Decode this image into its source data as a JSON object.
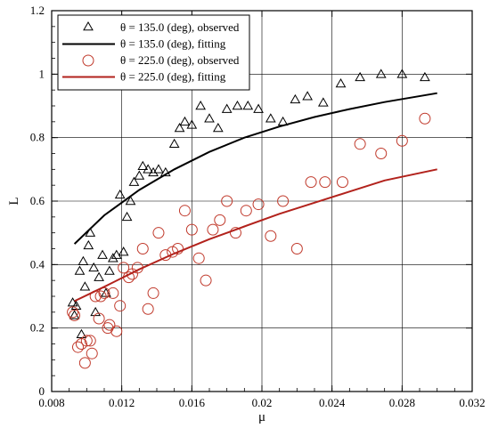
{
  "chart_data": {
    "type": "scatter",
    "xlabel": "μ",
    "ylabel": "L",
    "xlim": [
      0.008,
      0.032
    ],
    "ylim": [
      0,
      1.2
    ],
    "x_ticks": [
      0.008,
      0.012,
      0.016,
      0.02,
      0.024,
      0.028,
      0.032
    ],
    "x_tick_labels": [
      "0.008",
      "0.012",
      "0.016",
      "0.02",
      "0.024",
      "0.028",
      "0.032"
    ],
    "y_ticks": [
      0,
      0.2,
      0.4,
      0.6,
      0.8,
      1,
      1.2
    ],
    "y_tick_labels": [
      "0",
      "0.2",
      "0.4",
      "0.6",
      "0.8",
      "1",
      "1.2"
    ],
    "grid": true,
    "legend_position": "top-left",
    "series": [
      {
        "name": "θ = 135.0 (deg), observed",
        "kind": "scatter",
        "marker": "triangle",
        "color": "#000000",
        "points": [
          [
            0.0092,
            0.28
          ],
          [
            0.0093,
            0.24
          ],
          [
            0.0094,
            0.27
          ],
          [
            0.0096,
            0.38
          ],
          [
            0.0097,
            0.18
          ],
          [
            0.0098,
            0.41
          ],
          [
            0.0099,
            0.33
          ],
          [
            0.0101,
            0.46
          ],
          [
            0.0102,
            0.5
          ],
          [
            0.0104,
            0.39
          ],
          [
            0.0105,
            0.25
          ],
          [
            0.0107,
            0.36
          ],
          [
            0.0109,
            0.43
          ],
          [
            0.0111,
            0.31
          ],
          [
            0.0113,
            0.38
          ],
          [
            0.0115,
            0.42
          ],
          [
            0.0117,
            0.43
          ],
          [
            0.0119,
            0.62
          ],
          [
            0.0121,
            0.44
          ],
          [
            0.0123,
            0.55
          ],
          [
            0.0125,
            0.6
          ],
          [
            0.0127,
            0.66
          ],
          [
            0.013,
            0.68
          ],
          [
            0.0132,
            0.71
          ],
          [
            0.0135,
            0.7
          ],
          [
            0.0138,
            0.69
          ],
          [
            0.0141,
            0.7
          ],
          [
            0.0145,
            0.69
          ],
          [
            0.015,
            0.78
          ],
          [
            0.0153,
            0.83
          ],
          [
            0.0156,
            0.85
          ],
          [
            0.016,
            0.84
          ],
          [
            0.0165,
            0.9
          ],
          [
            0.017,
            0.86
          ],
          [
            0.0175,
            0.83
          ],
          [
            0.018,
            0.89
          ],
          [
            0.0186,
            0.9
          ],
          [
            0.0192,
            0.9
          ],
          [
            0.0198,
            0.89
          ],
          [
            0.0205,
            0.86
          ],
          [
            0.0212,
            0.85
          ],
          [
            0.0219,
            0.92
          ],
          [
            0.0226,
            0.93
          ],
          [
            0.0235,
            0.91
          ],
          [
            0.0245,
            0.97
          ],
          [
            0.0256,
            0.99
          ],
          [
            0.0268,
            1.0
          ],
          [
            0.028,
            1.0
          ],
          [
            0.0293,
            0.99
          ]
        ]
      },
      {
        "name": "θ = 135.0 (deg), fitting",
        "kind": "line",
        "color": "#000000",
        "points": [
          [
            0.0093,
            0.465
          ],
          [
            0.011,
            0.555
          ],
          [
            0.013,
            0.635
          ],
          [
            0.015,
            0.7
          ],
          [
            0.017,
            0.755
          ],
          [
            0.019,
            0.8
          ],
          [
            0.021,
            0.835
          ],
          [
            0.023,
            0.865
          ],
          [
            0.025,
            0.89
          ],
          [
            0.027,
            0.912
          ],
          [
            0.03,
            0.94
          ]
        ]
      },
      {
        "name": "θ = 225.0 (deg), observed",
        "kind": "scatter",
        "marker": "circle",
        "color": "#c0392b",
        "points": [
          [
            0.0092,
            0.25
          ],
          [
            0.0093,
            0.24
          ],
          [
            0.0095,
            0.14
          ],
          [
            0.0097,
            0.15
          ],
          [
            0.0099,
            0.09
          ],
          [
            0.01,
            0.16
          ],
          [
            0.0102,
            0.16
          ],
          [
            0.0103,
            0.12
          ],
          [
            0.0105,
            0.3
          ],
          [
            0.0107,
            0.23
          ],
          [
            0.0108,
            0.3
          ],
          [
            0.011,
            0.31
          ],
          [
            0.0112,
            0.2
          ],
          [
            0.0113,
            0.21
          ],
          [
            0.0115,
            0.31
          ],
          [
            0.0117,
            0.19
          ],
          [
            0.0119,
            0.27
          ],
          [
            0.0121,
            0.39
          ],
          [
            0.0124,
            0.36
          ],
          [
            0.0126,
            0.37
          ],
          [
            0.0129,
            0.39
          ],
          [
            0.0132,
            0.45
          ],
          [
            0.0135,
            0.26
          ],
          [
            0.0138,
            0.31
          ],
          [
            0.0141,
            0.5
          ],
          [
            0.0145,
            0.43
          ],
          [
            0.0149,
            0.44
          ],
          [
            0.0152,
            0.45
          ],
          [
            0.0156,
            0.57
          ],
          [
            0.016,
            0.51
          ],
          [
            0.0164,
            0.42
          ],
          [
            0.0168,
            0.35
          ],
          [
            0.0172,
            0.51
          ],
          [
            0.0176,
            0.54
          ],
          [
            0.018,
            0.6
          ],
          [
            0.0185,
            0.5
          ],
          [
            0.0191,
            0.57
          ],
          [
            0.0198,
            0.59
          ],
          [
            0.0205,
            0.49
          ],
          [
            0.0212,
            0.6
          ],
          [
            0.022,
            0.45
          ],
          [
            0.0228,
            0.66
          ],
          [
            0.0236,
            0.66
          ],
          [
            0.0246,
            0.66
          ],
          [
            0.0256,
            0.78
          ],
          [
            0.0268,
            0.75
          ],
          [
            0.028,
            0.79
          ],
          [
            0.0293,
            0.86
          ]
        ]
      },
      {
        "name": "θ = 225.0 (deg), fitting",
        "kind": "line",
        "color": "#b2221c",
        "points": [
          [
            0.0093,
            0.285
          ],
          [
            0.011,
            0.33
          ],
          [
            0.013,
            0.385
          ],
          [
            0.015,
            0.435
          ],
          [
            0.017,
            0.48
          ],
          [
            0.019,
            0.52
          ],
          [
            0.021,
            0.56
          ],
          [
            0.023,
            0.595
          ],
          [
            0.025,
            0.63
          ],
          [
            0.027,
            0.665
          ],
          [
            0.03,
            0.7
          ]
        ]
      }
    ]
  }
}
